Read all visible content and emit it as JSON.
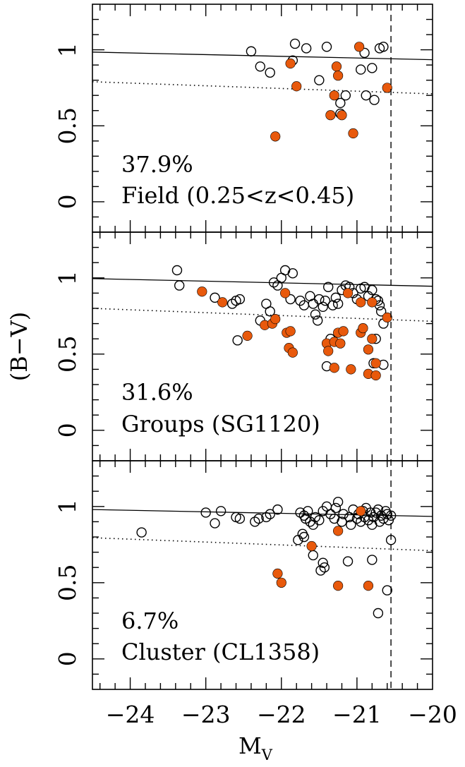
{
  "chart_data": {
    "type": "scatter",
    "xlabel": "M",
    "xlabel_subscript": "V",
    "ylabel": "(B−V)",
    "xlim": [
      -24.5,
      -20.0
    ],
    "ylim": [
      -0.2,
      1.3
    ],
    "x_ticks": [
      -24,
      -23,
      -22,
      -21,
      -20
    ],
    "x_tick_labels": [
      "−24",
      "−23",
      "−22",
      "−21",
      "−20"
    ],
    "y_ticks": [
      0,
      0.5,
      1
    ],
    "y_tick_labels": [
      "0",
      "0.5",
      "1"
    ],
    "vertical_cut_x": -20.55,
    "filled_color": "#e8590c",
    "panels": [
      {
        "percent": "37.9%",
        "label": "Field (0.25<z<0.45)",
        "fit_solid": [
          [
            -24.5,
            0.985
          ],
          [
            -20.0,
            0.935
          ]
        ],
        "fit_dotted": [
          [
            -24.5,
            0.79
          ],
          [
            -20.0,
            0.71
          ]
        ],
        "open": [
          [
            -22.4,
            0.99
          ],
          [
            -22.28,
            0.89
          ],
          [
            -22.15,
            0.85
          ],
          [
            -21.82,
            1.04
          ],
          [
            -21.67,
            1.01
          ],
          [
            -21.4,
            1.02
          ],
          [
            -21.5,
            0.8
          ],
          [
            -21.85,
            0.93
          ],
          [
            -21.22,
            0.65
          ],
          [
            -21.22,
            0.58
          ],
          [
            -21.15,
            0.7
          ],
          [
            -20.95,
            0.87
          ],
          [
            -20.9,
            0.98
          ],
          [
            -20.8,
            0.88
          ],
          [
            -20.7,
            1.01
          ],
          [
            -20.65,
            1.02
          ],
          [
            -20.88,
            0.7
          ],
          [
            -20.77,
            0.67
          ]
        ],
        "filled": [
          [
            -22.08,
            0.43
          ],
          [
            -21.88,
            0.91
          ],
          [
            -21.8,
            0.76
          ],
          [
            -21.27,
            0.89
          ],
          [
            -21.25,
            0.83
          ],
          [
            -21.3,
            0.7
          ],
          [
            -21.35,
            0.57
          ],
          [
            -21.2,
            0.57
          ],
          [
            -21.05,
            0.45
          ],
          [
            -20.97,
            1.02
          ],
          [
            -20.6,
            0.75
          ]
        ]
      },
      {
        "percent": "31.6%",
        "label": "Groups (SG1120)",
        "fit_solid": [
          [
            -24.5,
            0.995
          ],
          [
            -20.0,
            0.945
          ]
        ],
        "fit_dotted": [
          [
            -24.5,
            0.8
          ],
          [
            -20.0,
            0.715
          ]
        ],
        "open": [
          [
            -23.38,
            1.05
          ],
          [
            -23.35,
            0.95
          ],
          [
            -22.88,
            0.87
          ],
          [
            -22.65,
            0.83
          ],
          [
            -22.6,
            0.85
          ],
          [
            -22.55,
            0.86
          ],
          [
            -22.58,
            0.59
          ],
          [
            -22.2,
            0.83
          ],
          [
            -22.15,
            0.78
          ],
          [
            -22.05,
            0.95
          ],
          [
            -22.1,
            0.97
          ],
          [
            -22.0,
            1.0
          ],
          [
            -21.95,
            1.05
          ],
          [
            -21.85,
            1.03
          ],
          [
            -21.88,
            0.86
          ],
          [
            -21.75,
            0.85
          ],
          [
            -21.7,
            0.82
          ],
          [
            -21.62,
            0.88
          ],
          [
            -21.58,
            0.83
          ],
          [
            -21.55,
            0.76
          ],
          [
            -21.52,
            0.72
          ],
          [
            -21.5,
            0.86
          ],
          [
            -21.45,
            0.81
          ],
          [
            -21.42,
            0.85
          ],
          [
            -21.38,
            0.94
          ],
          [
            -21.32,
            0.82
          ],
          [
            -21.28,
            0.87
          ],
          [
            -21.25,
            0.83
          ],
          [
            -21.2,
            0.92
          ],
          [
            -21.15,
            0.95
          ],
          [
            -21.1,
            0.94
          ],
          [
            -21.05,
            0.9
          ],
          [
            -21.0,
            0.86
          ],
          [
            -20.95,
            0.93
          ],
          [
            -20.9,
            0.94
          ],
          [
            -20.85,
            0.88
          ],
          [
            -20.8,
            0.92
          ],
          [
            -20.75,
            0.86
          ],
          [
            -20.72,
            0.85
          ],
          [
            -20.7,
            0.82
          ],
          [
            -20.68,
            0.78
          ],
          [
            -20.65,
            0.7
          ],
          [
            -20.75,
            0.6
          ],
          [
            -20.78,
            0.44
          ],
          [
            -20.65,
            0.43
          ],
          [
            -21.4,
            0.42
          ],
          [
            -21.35,
            0.6
          ],
          [
            -22.28,
            0.72
          ]
        ],
        "filled": [
          [
            -23.05,
            0.91
          ],
          [
            -22.78,
            0.84
          ],
          [
            -22.45,
            0.62
          ],
          [
            -22.22,
            0.69
          ],
          [
            -22.12,
            0.7
          ],
          [
            -22.08,
            0.73
          ],
          [
            -21.95,
            0.9
          ],
          [
            -21.93,
            0.64
          ],
          [
            -21.88,
            0.65
          ],
          [
            -21.9,
            0.54
          ],
          [
            -21.85,
            0.51
          ],
          [
            -21.4,
            0.57
          ],
          [
            -21.38,
            0.52
          ],
          [
            -21.3,
            0.58
          ],
          [
            -21.25,
            0.64
          ],
          [
            -21.22,
            0.57
          ],
          [
            -21.18,
            0.65
          ],
          [
            -21.3,
            0.41
          ],
          [
            -21.12,
            0.9
          ],
          [
            -21.08,
            0.4
          ],
          [
            -20.95,
            0.84
          ],
          [
            -20.95,
            0.64
          ],
          [
            -20.92,
            0.67
          ],
          [
            -20.85,
            0.53
          ],
          [
            -20.8,
            0.6
          ],
          [
            -20.8,
            0.84
          ],
          [
            -20.75,
            0.44
          ],
          [
            -20.85,
            0.37
          ],
          [
            -20.75,
            0.36
          ],
          [
            -20.6,
            0.74
          ]
        ]
      },
      {
        "percent": "6.7%",
        "label": "Cluster (CL1358)",
        "fit_solid": [
          [
            -24.5,
            0.98
          ],
          [
            -20.0,
            0.935
          ]
        ],
        "fit_dotted": [
          [
            -24.5,
            0.795
          ],
          [
            -20.0,
            0.71
          ]
        ],
        "open": [
          [
            -23.85,
            0.83
          ],
          [
            -23.0,
            0.96
          ],
          [
            -22.88,
            0.89
          ],
          [
            -22.8,
            0.97
          ],
          [
            -22.6,
            0.93
          ],
          [
            -22.55,
            0.92
          ],
          [
            -22.35,
            0.9
          ],
          [
            -22.3,
            0.92
          ],
          [
            -22.2,
            0.93
          ],
          [
            -22.15,
            0.95
          ],
          [
            -22.05,
            0.98
          ],
          [
            -21.75,
            0.96
          ],
          [
            -21.7,
            0.94
          ],
          [
            -21.68,
            0.92
          ],
          [
            -21.65,
            0.97
          ],
          [
            -21.62,
            0.9
          ],
          [
            -21.58,
            0.88
          ],
          [
            -21.55,
            0.93
          ],
          [
            -21.5,
            0.91
          ],
          [
            -21.45,
            0.97
          ],
          [
            -21.4,
            1.0
          ],
          [
            -21.35,
            0.95
          ],
          [
            -21.3,
            0.92
          ],
          [
            -21.28,
            0.99
          ],
          [
            -21.25,
            1.03
          ],
          [
            -21.2,
            0.9
          ],
          [
            -21.18,
            0.95
          ],
          [
            -21.1,
            0.93
          ],
          [
            -21.08,
            0.88
          ],
          [
            -21.05,
            0.98
          ],
          [
            -21.0,
            0.92
          ],
          [
            -20.98,
            0.95
          ],
          [
            -20.95,
            0.9
          ],
          [
            -20.92,
            0.97
          ],
          [
            -20.9,
            0.93
          ],
          [
            -20.88,
            0.99
          ],
          [
            -20.85,
            0.91
          ],
          [
            -20.82,
            0.96
          ],
          [
            -20.8,
            0.88
          ],
          [
            -20.78,
            0.93
          ],
          [
            -20.75,
            0.96
          ],
          [
            -20.72,
            0.98
          ],
          [
            -20.7,
            0.9
          ],
          [
            -20.68,
            0.94
          ],
          [
            -20.65,
            0.92
          ],
          [
            -20.62,
            0.97
          ],
          [
            -20.6,
            0.95
          ],
          [
            -20.58,
            0.91
          ],
          [
            -20.55,
            0.94
          ],
          [
            -21.78,
            0.78
          ],
          [
            -21.72,
            0.82
          ],
          [
            -21.7,
            0.8
          ],
          [
            -21.58,
            0.68
          ],
          [
            -21.45,
            0.63
          ],
          [
            -21.43,
            0.6
          ],
          [
            -21.48,
            0.58
          ],
          [
            -21.12,
            0.64
          ],
          [
            -20.8,
            0.65
          ],
          [
            -20.55,
            0.78
          ],
          [
            -20.6,
            0.45
          ],
          [
            -20.72,
            0.3
          ]
        ],
        "filled": [
          [
            -22.05,
            0.56
          ],
          [
            -22.0,
            0.5
          ],
          [
            -21.6,
            0.74
          ],
          [
            -21.25,
            0.84
          ],
          [
            -21.25,
            0.48
          ],
          [
            -20.95,
            0.97
          ],
          [
            -20.85,
            0.48
          ]
        ]
      }
    ]
  }
}
